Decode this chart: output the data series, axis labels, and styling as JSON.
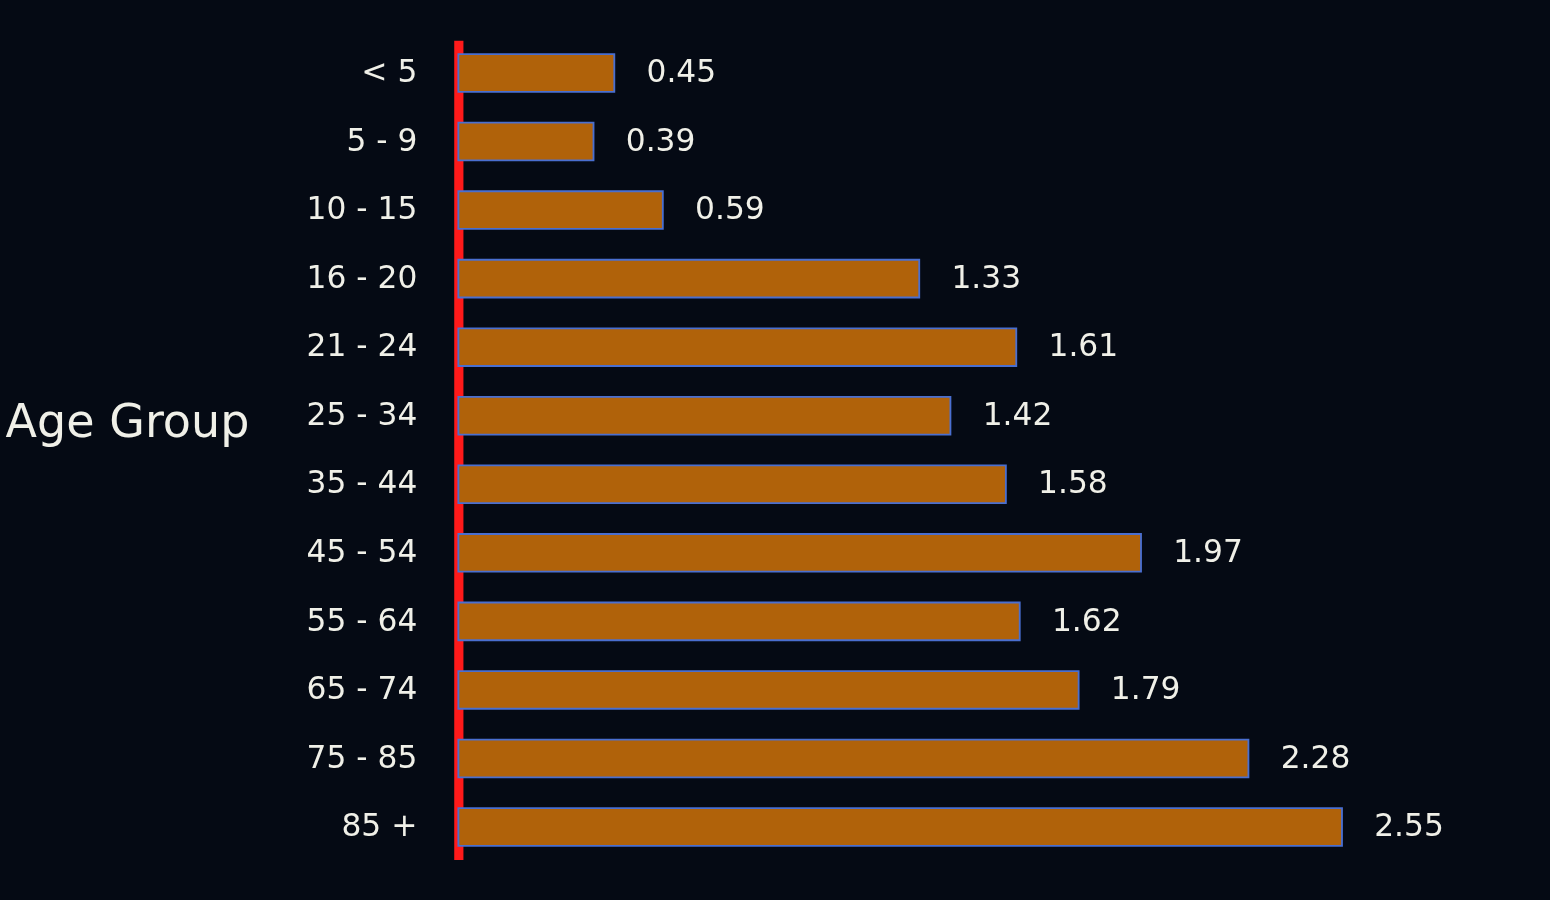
{
  "chart_data": {
    "type": "bar",
    "orientation": "horizontal",
    "ylabel": "Age Group",
    "categories": [
      "< 5",
      "5 - 9",
      "10 - 15",
      "16 - 20",
      "21 - 24",
      "25 - 34",
      "35 - 44",
      "45 - 54",
      "55 - 64",
      "65 - 74",
      "75 - 85",
      "85 +"
    ],
    "values": [
      0.45,
      0.39,
      0.59,
      1.33,
      1.61,
      1.42,
      1.58,
      1.97,
      1.62,
      1.79,
      2.28,
      2.55
    ],
    "color": "#b0620a",
    "data_labels": true,
    "grid": false
  }
}
